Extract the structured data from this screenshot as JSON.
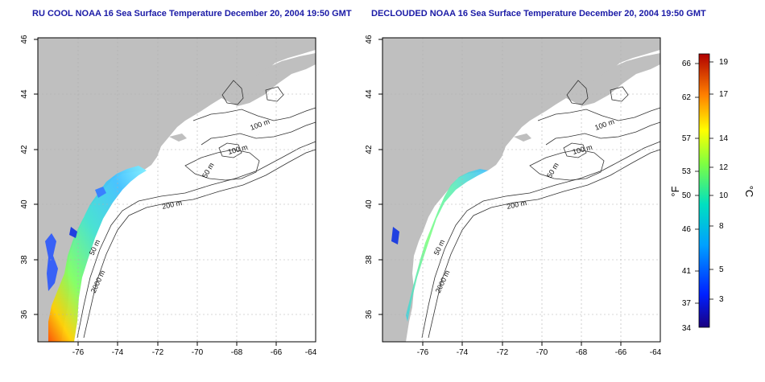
{
  "panels": [
    {
      "title": "RU COOL NOAA 16 Sea Surface Temperature December 20, 2004 19:50 GMT"
    },
    {
      "title": "DECLOUDED NOAA 16 Sea Surface Temperature December 20, 2004 19:50 GMT"
    }
  ],
  "map": {
    "lon_ticks": [
      "-76",
      "-74",
      "-72",
      "-70",
      "-68",
      "-66",
      "-64"
    ],
    "lat_ticks": [
      "36",
      "38",
      "40",
      "42",
      "44",
      "46"
    ],
    "lon_range": [
      -77.2,
      -63.0
    ],
    "lat_range": [
      35.0,
      46.0
    ],
    "contour_labels": [
      "100 m",
      "100 m",
      "50 m",
      "200 m",
      "50 m",
      "2000 m"
    ]
  },
  "colorbar": {
    "f_ticks": [
      "66",
      "62",
      "57",
      "53",
      "50",
      "46",
      "41",
      "37",
      "34"
    ],
    "c_ticks": [
      "19",
      "17",
      "14",
      "12",
      "10",
      "8",
      "5",
      "3"
    ],
    "f_unit": "°F",
    "c_unit": "°C"
  },
  "colors": {
    "land": "#bfbfbf",
    "ocean": "#ffffff",
    "contour": "#333333",
    "grid": "#b0b0b0",
    "title": "#1a1aa6"
  }
}
